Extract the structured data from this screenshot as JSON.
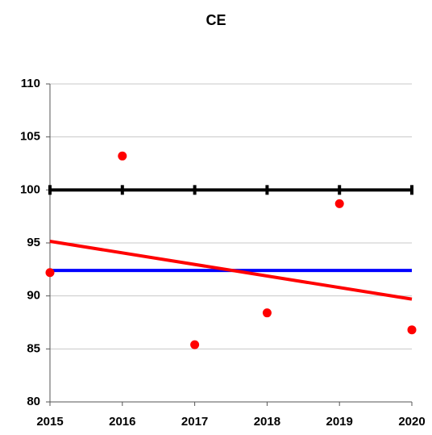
{
  "chart_data": {
    "type": "combo",
    "title": "CE",
    "xlim": [
      2015,
      2020
    ],
    "xticks": [
      2015,
      2016,
      2017,
      2018,
      2019,
      2020
    ],
    "ylim": [
      80,
      110
    ],
    "yticks": [
      80,
      85,
      90,
      95,
      100,
      105,
      110
    ],
    "grid": true,
    "series": [
      {
        "type": "line-with-ticks",
        "color": "#000000",
        "x": [
          2015,
          2016,
          2017,
          2018,
          2019,
          2020
        ],
        "values": [
          100,
          100,
          100,
          100,
          100,
          100
        ]
      },
      {
        "type": "line",
        "color": "#0000ff",
        "x": [
          2015,
          2020
        ],
        "values": [
          92.4,
          92.4
        ]
      },
      {
        "type": "line",
        "color": "#ff0000",
        "x": [
          2015,
          2020
        ],
        "values": [
          95.15,
          89.7
        ]
      },
      {
        "type": "scatter",
        "color": "#ff0000",
        "x": [
          2015,
          2016,
          2017,
          2018,
          2019,
          2020
        ],
        "values": [
          92.2,
          103.2,
          85.4,
          88.4,
          98.7,
          86.8
        ]
      }
    ]
  }
}
